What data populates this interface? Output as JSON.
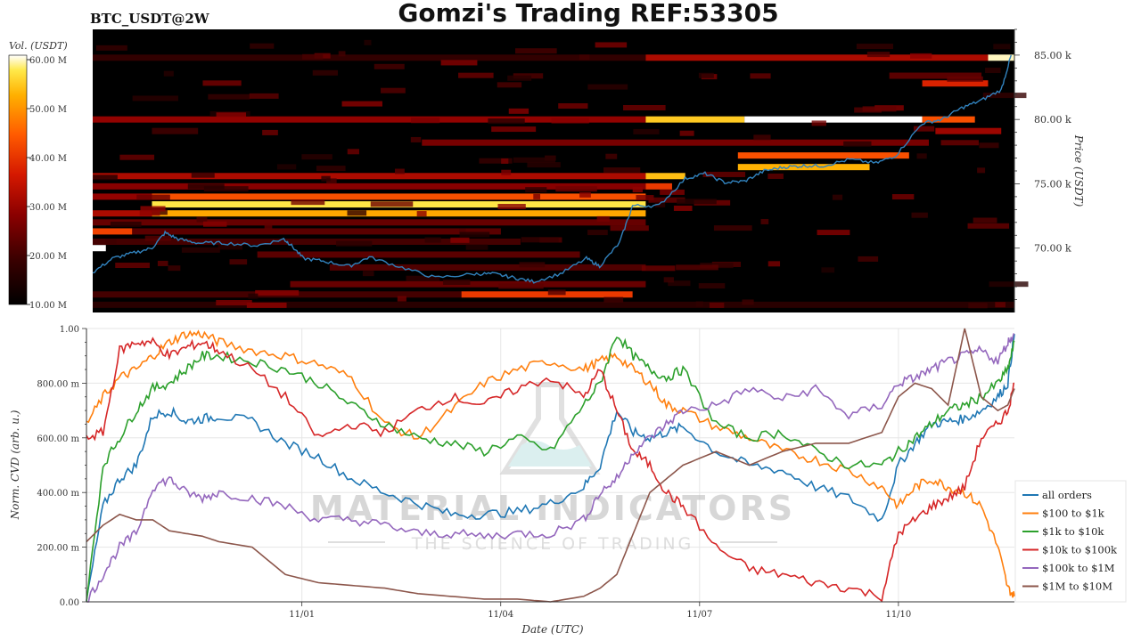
{
  "header": {
    "symbol": "BTC_USDT@2W",
    "title": "Gomzi's Trading REF:53305"
  },
  "watermark": {
    "line1": "MATERIAL INDICATORS",
    "line2": "THE SCIENCE OF TRADING"
  },
  "colors": {
    "heat_scale": [
      "#000000",
      "#3a0000",
      "#8b0000",
      "#d41800",
      "#ff5a00",
      "#ffb000",
      "#ffe94a",
      "#ffffff"
    ],
    "price_line": "#3182bd",
    "grid": "#e6e6e6"
  },
  "chart_data": [
    {
      "type": "heatmap",
      "title": "Gomzi's Trading REF:53305",
      "subtitle": "BTC_USDT@2W",
      "ylabel": "Price (USDT)",
      "ylim": [
        65000,
        87000
      ],
      "yticks": [
        70000,
        75000,
        80000,
        85000
      ],
      "ytick_labels": [
        "70.00 k",
        "75.00 k",
        "80.00 k",
        "85.00 k"
      ],
      "colorbar": {
        "label": "Vol. (USDT)",
        "range": [
          10000000,
          60000000
        ],
        "ticks": [
          10000000,
          20000000,
          30000000,
          40000000,
          50000000,
          60000000
        ],
        "tick_labels": [
          "10.00 M",
          "20.00 M",
          "30.00 M",
          "40.00 M",
          "50.00 M",
          "60.00 M"
        ]
      },
      "x_domain_days": [
        0,
        14
      ],
      "price_series": {
        "t": [
          0,
          0.3,
          0.6,
          0.9,
          1.1,
          1.3,
          1.6,
          2.0,
          2.5,
          2.9,
          3.0,
          3.2,
          3.5,
          3.9,
          4.2,
          4.7,
          5.2,
          5.8,
          6.1,
          6.4,
          6.7,
          7.1,
          7.5,
          7.7,
          8.0,
          8.2,
          8.6,
          9.0,
          9.3,
          9.6,
          9.9,
          10.2,
          10.5,
          10.8,
          11.1,
          11.5,
          11.9,
          12.2,
          12.6,
          12.9,
          13.2,
          13.5,
          13.8,
          13.95
        ],
        "price": [
          68100,
          69200,
          69600,
          70000,
          71200,
          70700,
          70400,
          70400,
          70200,
          70700,
          70300,
          69200,
          69000,
          68600,
          69300,
          68500,
          67700,
          68000,
          68000,
          67700,
          67400,
          68000,
          69200,
          68600,
          70400,
          73300,
          73300,
          75400,
          75800,
          75100,
          75200,
          76000,
          76300,
          76400,
          76400,
          76900,
          76600,
          77200,
          79700,
          80000,
          80900,
          81500,
          82300,
          85000
        ]
      },
      "heat_bands": [
        {
          "price": 84800,
          "t0": 0,
          "t1": 8.4,
          "v": 0.12
        },
        {
          "price": 84800,
          "t0": 8.4,
          "t1": 13.6,
          "v": 0.35
        },
        {
          "price": 84800,
          "t0": 13.6,
          "t1": 14,
          "v": 0.95
        },
        {
          "price": 82800,
          "t0": 12.6,
          "t1": 13.6,
          "v": 0.45
        },
        {
          "price": 83400,
          "t0": 12.1,
          "t1": 13.5,
          "v": 0.2
        },
        {
          "price": 80000,
          "t0": 0,
          "t1": 8.4,
          "v": 0.3
        },
        {
          "price": 80000,
          "t0": 8.4,
          "t1": 9.9,
          "v": 0.78
        },
        {
          "price": 80000,
          "t0": 9.9,
          "t1": 12.6,
          "v": 1.0
        },
        {
          "price": 80000,
          "t0": 12.6,
          "t1": 13.4,
          "v": 0.55
        },
        {
          "price": 79100,
          "t0": 0.9,
          "t1": 1.6,
          "v": 0.14
        },
        {
          "price": 79100,
          "t0": 12.8,
          "t1": 13.8,
          "v": 0.32
        },
        {
          "price": 78200,
          "t0": 5.0,
          "t1": 12.7,
          "v": 0.25
        },
        {
          "price": 77200,
          "t0": 9.8,
          "t1": 12.4,
          "v": 0.55
        },
        {
          "price": 76300,
          "t0": 9.8,
          "t1": 11.8,
          "v": 0.72
        },
        {
          "price": 75600,
          "t0": 0,
          "t1": 8.4,
          "v": 0.35
        },
        {
          "price": 75600,
          "t0": 8.4,
          "t1": 9.0,
          "v": 0.75
        },
        {
          "price": 74800,
          "t0": 0,
          "t1": 8.4,
          "v": 0.28
        },
        {
          "price": 74800,
          "t0": 8.4,
          "t1": 8.8,
          "v": 0.5
        },
        {
          "price": 74000,
          "t0": 0,
          "t1": 0.9,
          "v": 0.3
        },
        {
          "price": 74000,
          "t0": 0.9,
          "t1": 8.4,
          "v": 0.55
        },
        {
          "price": 73400,
          "t0": 0.9,
          "t1": 8.4,
          "v": 0.85
        },
        {
          "price": 72700,
          "t0": 0.9,
          "t1": 8.4,
          "v": 0.7
        },
        {
          "price": 72700,
          "t0": 0,
          "t1": 0.9,
          "v": 0.35
        },
        {
          "price": 72000,
          "t0": 0,
          "t1": 8.4,
          "v": 0.22
        },
        {
          "price": 71300,
          "t0": 0,
          "t1": 0.6,
          "v": 0.52
        },
        {
          "price": 71300,
          "t0": 0.6,
          "t1": 6.2,
          "v": 0.2
        },
        {
          "price": 70500,
          "t0": 0,
          "t1": 6.5,
          "v": 0.16
        },
        {
          "price": 70000,
          "t0": 0,
          "t1": 0.2,
          "v": 1.0
        },
        {
          "price": 69500,
          "t0": 2.5,
          "t1": 7.4,
          "v": 0.2
        },
        {
          "price": 68500,
          "t0": 3.6,
          "t1": 8.4,
          "v": 0.18
        },
        {
          "price": 67200,
          "t0": 3.0,
          "t1": 8.4,
          "v": 0.22
        },
        {
          "price": 66400,
          "t0": 5.6,
          "t1": 8.2,
          "v": 0.5
        },
        {
          "price": 66400,
          "t0": 0,
          "t1": 5.6,
          "v": 0.16
        },
        {
          "price": 65600,
          "t0": 0,
          "t1": 14,
          "v": 0.1
        }
      ]
    },
    {
      "type": "line",
      "xlabel": "Date (UTC)",
      "ylabel": "Norm. CVD (arb. u.)",
      "ylim": [
        0,
        1
      ],
      "yticks": [
        0,
        0.2,
        0.4,
        0.6,
        0.8,
        1.0
      ],
      "ytick_labels": [
        "0.00",
        "200.00 m",
        "400.00 m",
        "600.00 m",
        "800.00 m",
        "1.00"
      ],
      "x_domain_days": [
        0,
        14
      ],
      "xticks": [
        3.25,
        6.25,
        9.25,
        12.25
      ],
      "xtick_labels": [
        "11/01",
        "11/04",
        "11/07",
        "11/10"
      ],
      "x": [
        0,
        0.25,
        0.5,
        0.75,
        1.0,
        1.25,
        1.5,
        1.75,
        2.0,
        2.5,
        3.0,
        3.5,
        4.0,
        4.5,
        5.0,
        5.5,
        6.0,
        6.5,
        7.0,
        7.5,
        7.75,
        8.0,
        8.25,
        8.5,
        8.75,
        9.0,
        9.5,
        10.0,
        10.5,
        11.0,
        11.5,
        12.0,
        12.25,
        12.5,
        12.75,
        13.0,
        13.25,
        13.5,
        13.75,
        13.9,
        14.0
      ],
      "series": [
        {
          "name": "all orders",
          "color": "#1f77b4",
          "values": [
            0.0,
            0.35,
            0.45,
            0.5,
            0.68,
            0.7,
            0.66,
            0.67,
            0.68,
            0.66,
            0.58,
            0.53,
            0.45,
            0.4,
            0.36,
            0.32,
            0.32,
            0.33,
            0.36,
            0.42,
            0.5,
            0.7,
            0.62,
            0.6,
            0.62,
            0.64,
            0.55,
            0.5,
            0.48,
            0.42,
            0.38,
            0.3,
            0.5,
            0.58,
            0.65,
            0.66,
            0.67,
            0.7,
            0.75,
            0.8,
            0.98
          ]
        },
        {
          "name": "$100 to $1k",
          "color": "#ff7f0e",
          "values": [
            0.65,
            0.75,
            0.82,
            0.85,
            0.9,
            0.95,
            0.98,
            0.98,
            0.95,
            0.92,
            0.9,
            0.87,
            0.82,
            0.65,
            0.6,
            0.7,
            0.8,
            0.85,
            0.88,
            0.85,
            0.88,
            0.9,
            0.85,
            0.8,
            0.72,
            0.7,
            0.64,
            0.6,
            0.55,
            0.52,
            0.48,
            0.42,
            0.35,
            0.42,
            0.45,
            0.42,
            0.4,
            0.35,
            0.2,
            0.05,
            0.02
          ]
        },
        {
          "name": "$1k to $10k",
          "color": "#2ca02c",
          "values": [
            0.0,
            0.5,
            0.6,
            0.7,
            0.78,
            0.8,
            0.85,
            0.9,
            0.9,
            0.88,
            0.85,
            0.8,
            0.72,
            0.65,
            0.6,
            0.58,
            0.55,
            0.6,
            0.55,
            0.72,
            0.8,
            0.98,
            0.9,
            0.85,
            0.82,
            0.85,
            0.65,
            0.6,
            0.62,
            0.55,
            0.5,
            0.5,
            0.55,
            0.6,
            0.65,
            0.7,
            0.72,
            0.75,
            0.8,
            0.85,
            0.95
          ]
        },
        {
          "name": "$10k to $100k",
          "color": "#d62728",
          "values": [
            0.6,
            0.62,
            0.92,
            0.95,
            0.95,
            0.9,
            0.93,
            0.95,
            0.92,
            0.85,
            0.75,
            0.6,
            0.65,
            0.62,
            0.7,
            0.75,
            0.72,
            0.78,
            0.82,
            0.75,
            0.85,
            0.7,
            0.55,
            0.5,
            0.4,
            0.35,
            0.2,
            0.12,
            0.1,
            0.07,
            0.05,
            0.02,
            0.25,
            0.3,
            0.35,
            0.38,
            0.42,
            0.6,
            0.65,
            0.7,
            0.8
          ]
        },
        {
          "name": "$100k to $1M",
          "color": "#9467bd",
          "values": [
            0.0,
            0.1,
            0.2,
            0.25,
            0.42,
            0.45,
            0.4,
            0.38,
            0.4,
            0.38,
            0.35,
            0.3,
            0.3,
            0.28,
            0.25,
            0.25,
            0.24,
            0.25,
            0.25,
            0.3,
            0.4,
            0.45,
            0.55,
            0.6,
            0.65,
            0.7,
            0.72,
            0.78,
            0.74,
            0.78,
            0.68,
            0.72,
            0.8,
            0.82,
            0.85,
            0.88,
            0.9,
            0.92,
            0.88,
            0.95,
            0.98
          ]
        },
        {
          "name": "$1M to $10M",
          "color": "#8c564b",
          "values": [
            0.22,
            0.28,
            0.32,
            0.3,
            0.3,
            0.26,
            0.25,
            0.24,
            0.22,
            0.2,
            0.1,
            0.07,
            0.06,
            0.05,
            0.03,
            0.02,
            0.01,
            0.01,
            0.0,
            0.02,
            0.05,
            0.1,
            0.25,
            0.4,
            0.45,
            0.5,
            0.55,
            0.5,
            0.55,
            0.58,
            0.58,
            0.62,
            0.75,
            0.8,
            0.78,
            0.72,
            1.0,
            0.75,
            0.7,
            0.72,
            0.78
          ]
        }
      ],
      "legend_position": "bottom-right"
    }
  ]
}
